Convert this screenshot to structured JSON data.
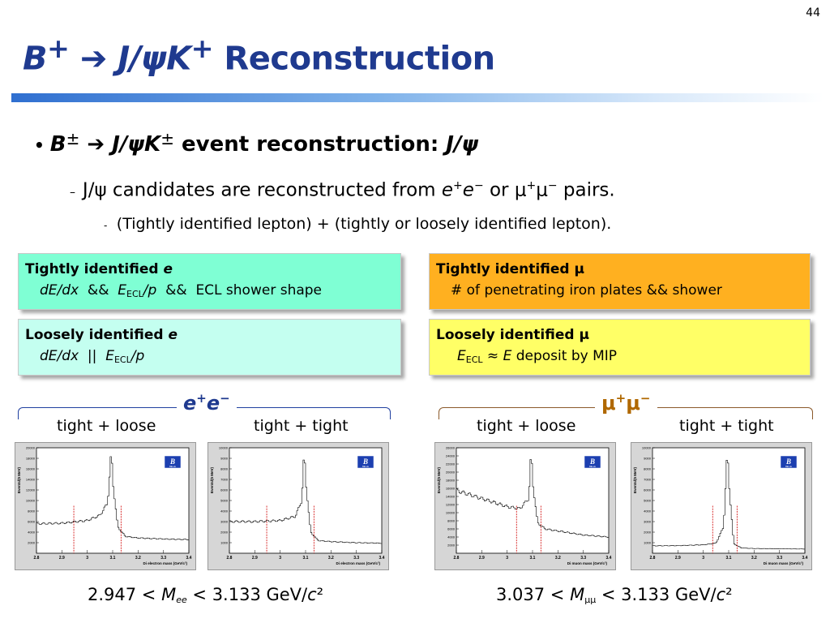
{
  "page_number": "44",
  "title": {
    "b": "B",
    "b_sup": "+",
    "arrow": " ➔ ",
    "jpsi": "J/ψK",
    "k_sup": "+",
    "rest": " Reconstruction"
  },
  "bullet1": {
    "b": "B",
    "pm1": "±",
    "arrow": " ➔ ",
    "jpsik": "J/ψK",
    "pm2": "±",
    "text": " event reconstruction: ",
    "jpsi": "J/ψ"
  },
  "bullet2": {
    "a": "J/ψ candidates are reconstructed from ",
    "e1": "e",
    "s1": "+",
    "e2": "e",
    "s2": "−",
    "b": " or μ",
    "s3": "+",
    "c": "μ",
    "s4": "−",
    "d": " pairs."
  },
  "bullet3": "(Tightly identified lepton) + (tightly or loosely identified lepton).",
  "boxes": {
    "tight_e": {
      "heading": "Tightly identified ",
      "particle": "e",
      "dedx": "dE/dx",
      "amp1": "  &&  ",
      "E": "E",
      "sub": "ECL",
      "p": "/p",
      "rest": "  &&  ECL shower shape"
    },
    "loose_e": {
      "heading": "Loosely identified ",
      "particle": "e",
      "dedx": "dE/dx",
      "or": "  ||  ",
      "E": "E",
      "sub": "ECL",
      "p": "/p"
    },
    "tight_mu": {
      "heading": "Tightly identified μ",
      "desc": "# of penetrating iron plates && shower"
    },
    "loose_mu": {
      "heading": "Loosely identified μ",
      "E": "E",
      "sub": "ECL",
      "approx": " ≈ ",
      "E2": "E",
      "rest": " deposit by MIP"
    }
  },
  "groups": {
    "ee": {
      "e1": "e",
      "s1": "+",
      "e2": "e",
      "s2": "−",
      "labels": [
        "tight + loose",
        "tight + tight"
      ]
    },
    "mumu": {
      "label": "μ",
      "s1": "+",
      "m2": "μ",
      "s2": "−",
      "labels": [
        "tight + loose",
        "tight + tight"
      ]
    }
  },
  "formulas": {
    "ee": {
      "a": "2.947 < ",
      "M": "M",
      "sub": "ee",
      "b": " < 3.133 GeV/",
      "c": "c",
      "sq": "²"
    },
    "mumu": {
      "a": "3.037 < ",
      "M": "M",
      "sub": "μμ",
      "b": " < 3.133 GeV/",
      "c": "c",
      "sq": "²"
    }
  },
  "plots": [
    {
      "ylabel": "Events/(5 MeV)",
      "xlabel": "Di electron mass (GeV/c²)",
      "logo_text": "BELLE",
      "yticks": [
        "2000",
        "4000",
        "6000",
        "8000",
        "10000",
        "12000",
        "14000",
        "16000",
        "18000",
        "20000"
      ],
      "xticks": [
        "2.8",
        "2.9",
        "3",
        "3.1",
        "3.2",
        "3.3",
        "3.4"
      ],
      "ylim": [
        0,
        20000
      ],
      "cuts": [
        2.947,
        3.133
      ],
      "curve": [
        [
          2.8,
          5600
        ],
        [
          2.9,
          5700
        ],
        [
          3.0,
          6200
        ],
        [
          3.05,
          7200
        ],
        [
          3.08,
          9500
        ],
        [
          3.095,
          19500
        ],
        [
          3.1,
          14000
        ],
        [
          3.12,
          5000
        ],
        [
          3.15,
          3200
        ],
        [
          3.2,
          2900
        ],
        [
          3.3,
          2700
        ],
        [
          3.4,
          2600
        ]
      ]
    },
    {
      "ylabel": "Events/(5 MeV)",
      "xlabel": "Di electron mass (GeV/c²)",
      "logo_text": "BELLE",
      "yticks": [
        "1000",
        "2000",
        "3000",
        "4000",
        "5000",
        "6000",
        "7000",
        "8000",
        "9000",
        "10000"
      ],
      "xticks": [
        "2.8",
        "2.9",
        "3",
        "3.1",
        "3.2",
        "3.3",
        "3.4"
      ],
      "ylim": [
        0,
        10000
      ],
      "cuts": [
        2.947,
        3.133
      ],
      "curve": [
        [
          2.8,
          3000
        ],
        [
          2.9,
          3000
        ],
        [
          3.0,
          3100
        ],
        [
          3.06,
          3500
        ],
        [
          3.085,
          5000
        ],
        [
          3.095,
          9800
        ],
        [
          3.1,
          7000
        ],
        [
          3.12,
          2000
        ],
        [
          3.15,
          1200
        ],
        [
          3.2,
          1100
        ],
        [
          3.3,
          1000
        ],
        [
          3.4,
          950
        ]
      ]
    },
    {
      "ylabel": "Events/(5 MeV)",
      "xlabel": "Di muon mass (GeV/c²)",
      "logo_text": "BELLE",
      "yticks": [
        "2000",
        "4000",
        "6000",
        "8000",
        "10000",
        "12000",
        "14000",
        "16000",
        "18000",
        "20000",
        "22000",
        "24000",
        "26000"
      ],
      "xticks": [
        "2.8",
        "2.9",
        "3",
        "3.1",
        "3.2",
        "3.3",
        "3.4"
      ],
      "ylim": [
        0,
        26000
      ],
      "cuts": [
        3.037,
        3.133
      ],
      "curve": [
        [
          2.8,
          15500
        ],
        [
          2.9,
          13500
        ],
        [
          3.0,
          11500
        ],
        [
          3.05,
          11000
        ],
        [
          3.085,
          13500
        ],
        [
          3.095,
          25500
        ],
        [
          3.1,
          18000
        ],
        [
          3.12,
          7500
        ],
        [
          3.15,
          6000
        ],
        [
          3.2,
          5500
        ],
        [
          3.3,
          4500
        ],
        [
          3.4,
          4000
        ]
      ]
    },
    {
      "ylabel": "Events/(5 MeV)",
      "xlabel": "Di muon mass (GeV/c²)",
      "logo_text": "BELLE",
      "yticks": [
        "1000",
        "2000",
        "3000",
        "4000",
        "5000",
        "6000",
        "7000",
        "8000",
        "9000",
        "10000"
      ],
      "xticks": [
        "2.8",
        "2.9",
        "3",
        "3.1",
        "3.2",
        "3.3",
        "3.4"
      ],
      "ylim": [
        0,
        10000
      ],
      "cuts": [
        3.037,
        3.133
      ],
      "curve": [
        [
          2.8,
          700
        ],
        [
          2.9,
          720
        ],
        [
          3.0,
          800
        ],
        [
          3.05,
          950
        ],
        [
          3.08,
          2500
        ],
        [
          3.095,
          9800
        ],
        [
          3.1,
          7000
        ],
        [
          3.12,
          900
        ],
        [
          3.15,
          500
        ],
        [
          3.2,
          450
        ],
        [
          3.3,
          420
        ],
        [
          3.4,
          400
        ]
      ]
    }
  ]
}
